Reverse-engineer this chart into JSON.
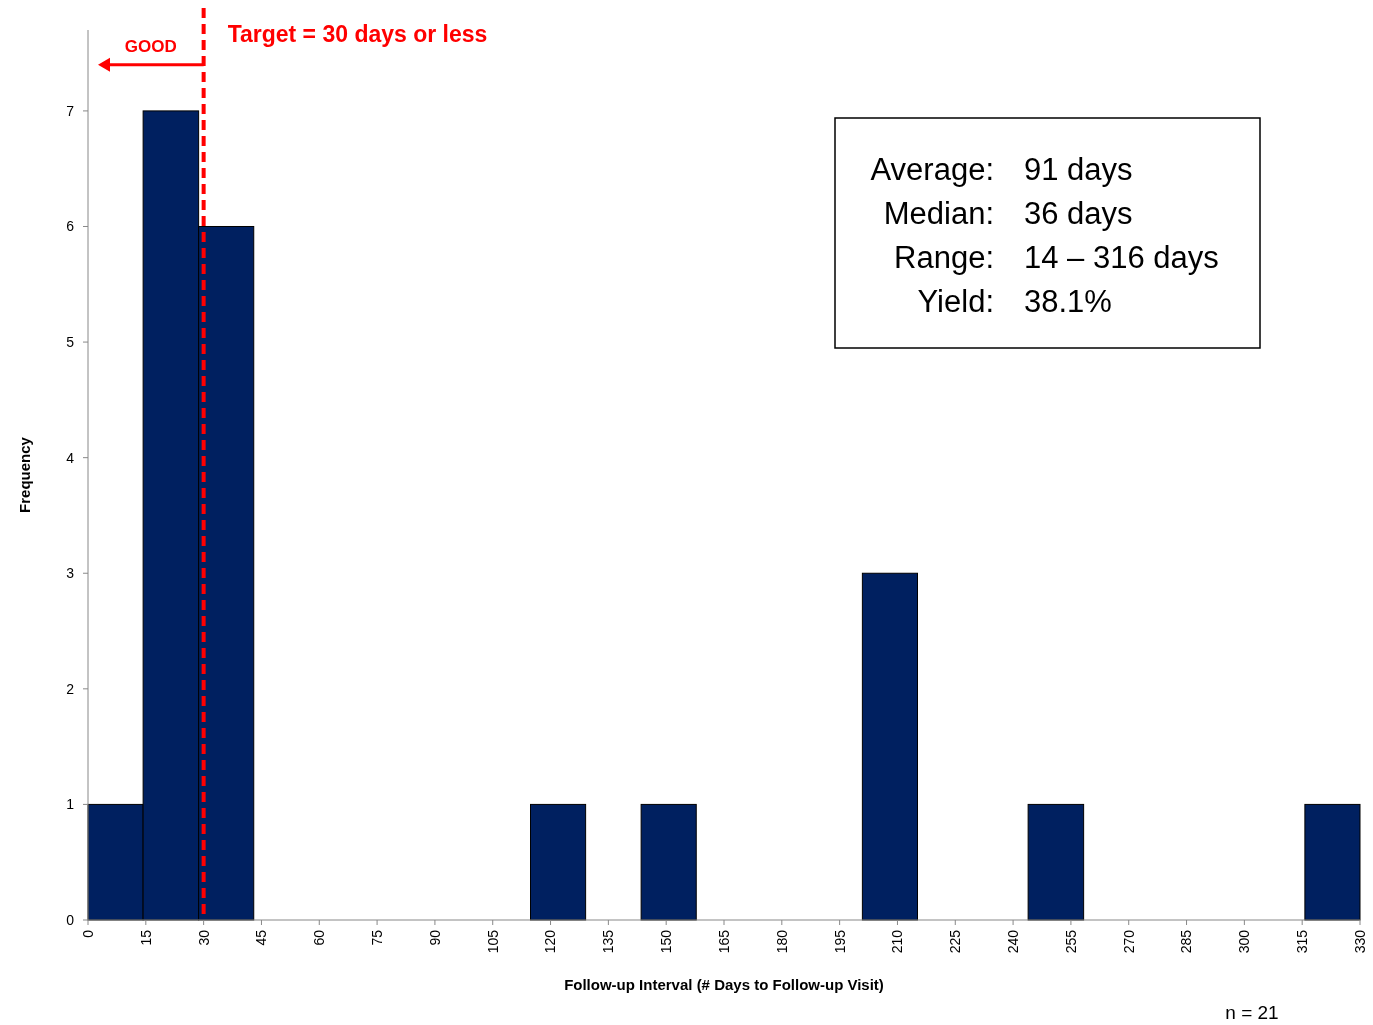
{
  "chart_data": {
    "type": "histogram",
    "xlabel": "Follow-up Interval (# Days to Follow-up Visit)",
    "ylabel": "Frequency",
    "bins": [
      0,
      14.3,
      28.7,
      43.0,
      57.4,
      71.7,
      86.1,
      100.4,
      114.8,
      129.1,
      143.5,
      157.8,
      172.2,
      186.5,
      200.9,
      215.2,
      229.6,
      243.9,
      258.3,
      272.6,
      287.0,
      301.3,
      315.7,
      330
    ],
    "values": [
      1,
      7,
      6,
      0,
      0,
      0,
      0,
      0,
      1,
      0,
      1,
      0,
      0,
      0,
      3,
      0,
      0,
      1,
      0,
      0,
      0,
      0,
      1
    ],
    "color": "#002060",
    "xlim": [
      0,
      330
    ],
    "xticks": [
      0,
      15,
      30,
      45,
      60,
      75,
      90,
      105,
      120,
      135,
      150,
      165,
      180,
      195,
      210,
      225,
      240,
      255,
      270,
      285,
      300,
      315,
      330
    ],
    "ylim": [
      0,
      7.7
    ],
    "yticks": [
      0,
      1,
      2,
      3,
      4,
      5,
      6,
      7
    ],
    "grid": false,
    "ref_lines": [
      {
        "axis": "x",
        "value": 30,
        "label": "Target = 30 days or less",
        "color": "#ff0000",
        "line_style": "dashed"
      }
    ],
    "annotations": [
      {
        "text": "GOOD",
        "x": 30,
        "y": 7.4
      },
      "Average:",
      "91 days",
      "Median:",
      "36 days",
      "Range:",
      "14 – 316 days",
      "Yield:",
      "38.1%",
      "n = 21"
    ]
  }
}
